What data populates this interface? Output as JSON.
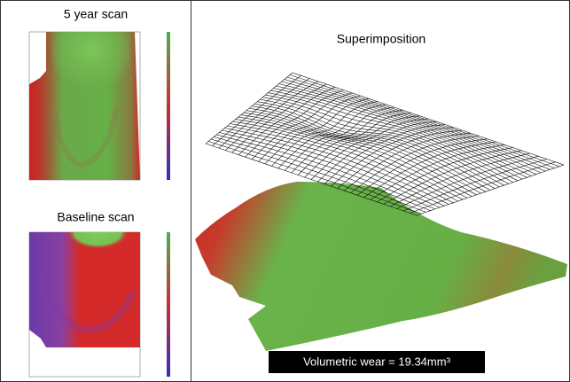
{
  "panels": {
    "top_left": {
      "title": "5 year scan"
    },
    "bottom_left": {
      "title": "Baseline scan"
    },
    "right": {
      "title": "Superimposition",
      "caption": "Volumetric wear = 19.34mm³"
    }
  }
}
